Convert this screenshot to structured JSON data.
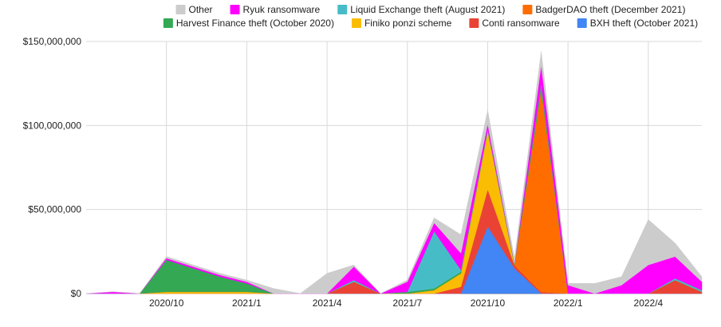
{
  "chart_data": {
    "type": "area",
    "stacked": true,
    "title": "",
    "xlabel": "",
    "ylabel": "",
    "ylim": [
      0,
      150000000
    ],
    "yticks": [
      {
        "value": 0,
        "label": "$0"
      },
      {
        "value": 50000000,
        "label": "$50,000,000"
      },
      {
        "value": 100000000,
        "label": "$100,000,000"
      },
      {
        "value": 150000000,
        "label": "$150,000,000"
      }
    ],
    "x": [
      "2020-07",
      "2020-08",
      "2020-09",
      "2020-10",
      "2020-11",
      "2020-12",
      "2021-01",
      "2021-02",
      "2021-03",
      "2021-04",
      "2021-05",
      "2021-06",
      "2021-07",
      "2021-08",
      "2021-09",
      "2021-10",
      "2021-11",
      "2021-12",
      "2022-01",
      "2022-02",
      "2022-03",
      "2022-04",
      "2022-05",
      "2022-06"
    ],
    "xticks": [
      {
        "index": 3,
        "label": "2020/10"
      },
      {
        "index": 6,
        "label": "2021/1"
      },
      {
        "index": 9,
        "label": "2021/4"
      },
      {
        "index": 12,
        "label": "2021/7"
      },
      {
        "index": 15,
        "label": "2021/10"
      },
      {
        "index": 18,
        "label": "2022/1"
      },
      {
        "index": 21,
        "label": "2022/4"
      }
    ],
    "grid": true,
    "legend_position": "top",
    "series": [
      {
        "name": "BXH theft (October 2021)",
        "color": "#4285f4",
        "values": [
          0,
          0,
          0,
          0,
          0,
          0,
          0,
          0,
          0,
          0,
          0,
          0,
          0,
          0,
          0,
          40000000,
          15000000,
          0,
          0,
          0,
          0,
          0,
          0,
          0
        ]
      },
      {
        "name": "Conti ransomware",
        "color": "#ea4335",
        "values": [
          0,
          0,
          0,
          0,
          0,
          0,
          0,
          0,
          0,
          0,
          7000000,
          0,
          0,
          0,
          4000000,
          22000000,
          2000000,
          1000000,
          0,
          0,
          0,
          0,
          8000000,
          1000000
        ]
      },
      {
        "name": "Finiko ponzi scheme",
        "color": "#fbbc04",
        "values": [
          0,
          0,
          0,
          1000000,
          1000000,
          1000000,
          1000000,
          0,
          0,
          0,
          0,
          0,
          0,
          2000000,
          8000000,
          35000000,
          0,
          0,
          0,
          0,
          0,
          0,
          0,
          0
        ]
      },
      {
        "name": "BadgerDAO theft (December 2021)",
        "color": "#ff6d01",
        "values": [
          0,
          0,
          0,
          0,
          0,
          0,
          0,
          0,
          0,
          0,
          0,
          0,
          0,
          0,
          0,
          0,
          0,
          120000000,
          0,
          0,
          0,
          0,
          0,
          0
        ]
      },
      {
        "name": "Harvest Finance theft (October 2020)",
        "color": "#34a853",
        "values": [
          0,
          0,
          0,
          19000000,
          14000000,
          9000000,
          5000000,
          0,
          0,
          0,
          0,
          0,
          1000000,
          1000000,
          1000000,
          0,
          1000000,
          3000000,
          0,
          0,
          0,
          0,
          0,
          0
        ]
      },
      {
        "name": "Liquid Exchange theft (August 2021)",
        "color": "#46bdc6",
        "values": [
          0,
          0,
          0,
          0,
          0,
          0,
          0,
          0,
          0,
          0,
          1000000,
          0,
          0,
          34000000,
          1000000,
          1000000,
          0,
          1000000,
          0,
          0,
          0,
          0,
          1000000,
          1000000
        ]
      },
      {
        "name": "Ryuk ransomware",
        "color": "#ff00ff",
        "values": [
          0,
          1000000,
          0,
          1000000,
          1000000,
          1000000,
          1000000,
          0,
          0,
          0,
          8000000,
          0,
          6000000,
          5000000,
          10000000,
          3000000,
          0,
          11000000,
          5000000,
          0,
          5000000,
          17000000,
          13000000,
          5000000
        ]
      },
      {
        "name": "Other",
        "color": "#cccccc",
        "values": [
          0,
          0,
          0,
          1000000,
          1000000,
          1000000,
          1000000,
          3000000,
          0,
          12000000,
          1000000,
          0,
          1000000,
          3000000,
          11000000,
          8000000,
          3000000,
          8000000,
          1000000,
          6000000,
          5000000,
          27000000,
          8000000,
          3000000
        ]
      }
    ],
    "legend_rows": [
      [
        "Other",
        "Ryuk ransomware",
        "Liquid Exchange theft (August 2021)",
        "BadgerDAO theft (December 2021)"
      ],
      [
        "Harvest Finance theft (October 2020)",
        "Finiko ponzi scheme",
        "Conti ransomware",
        "BXH theft (October 2021)"
      ]
    ]
  }
}
